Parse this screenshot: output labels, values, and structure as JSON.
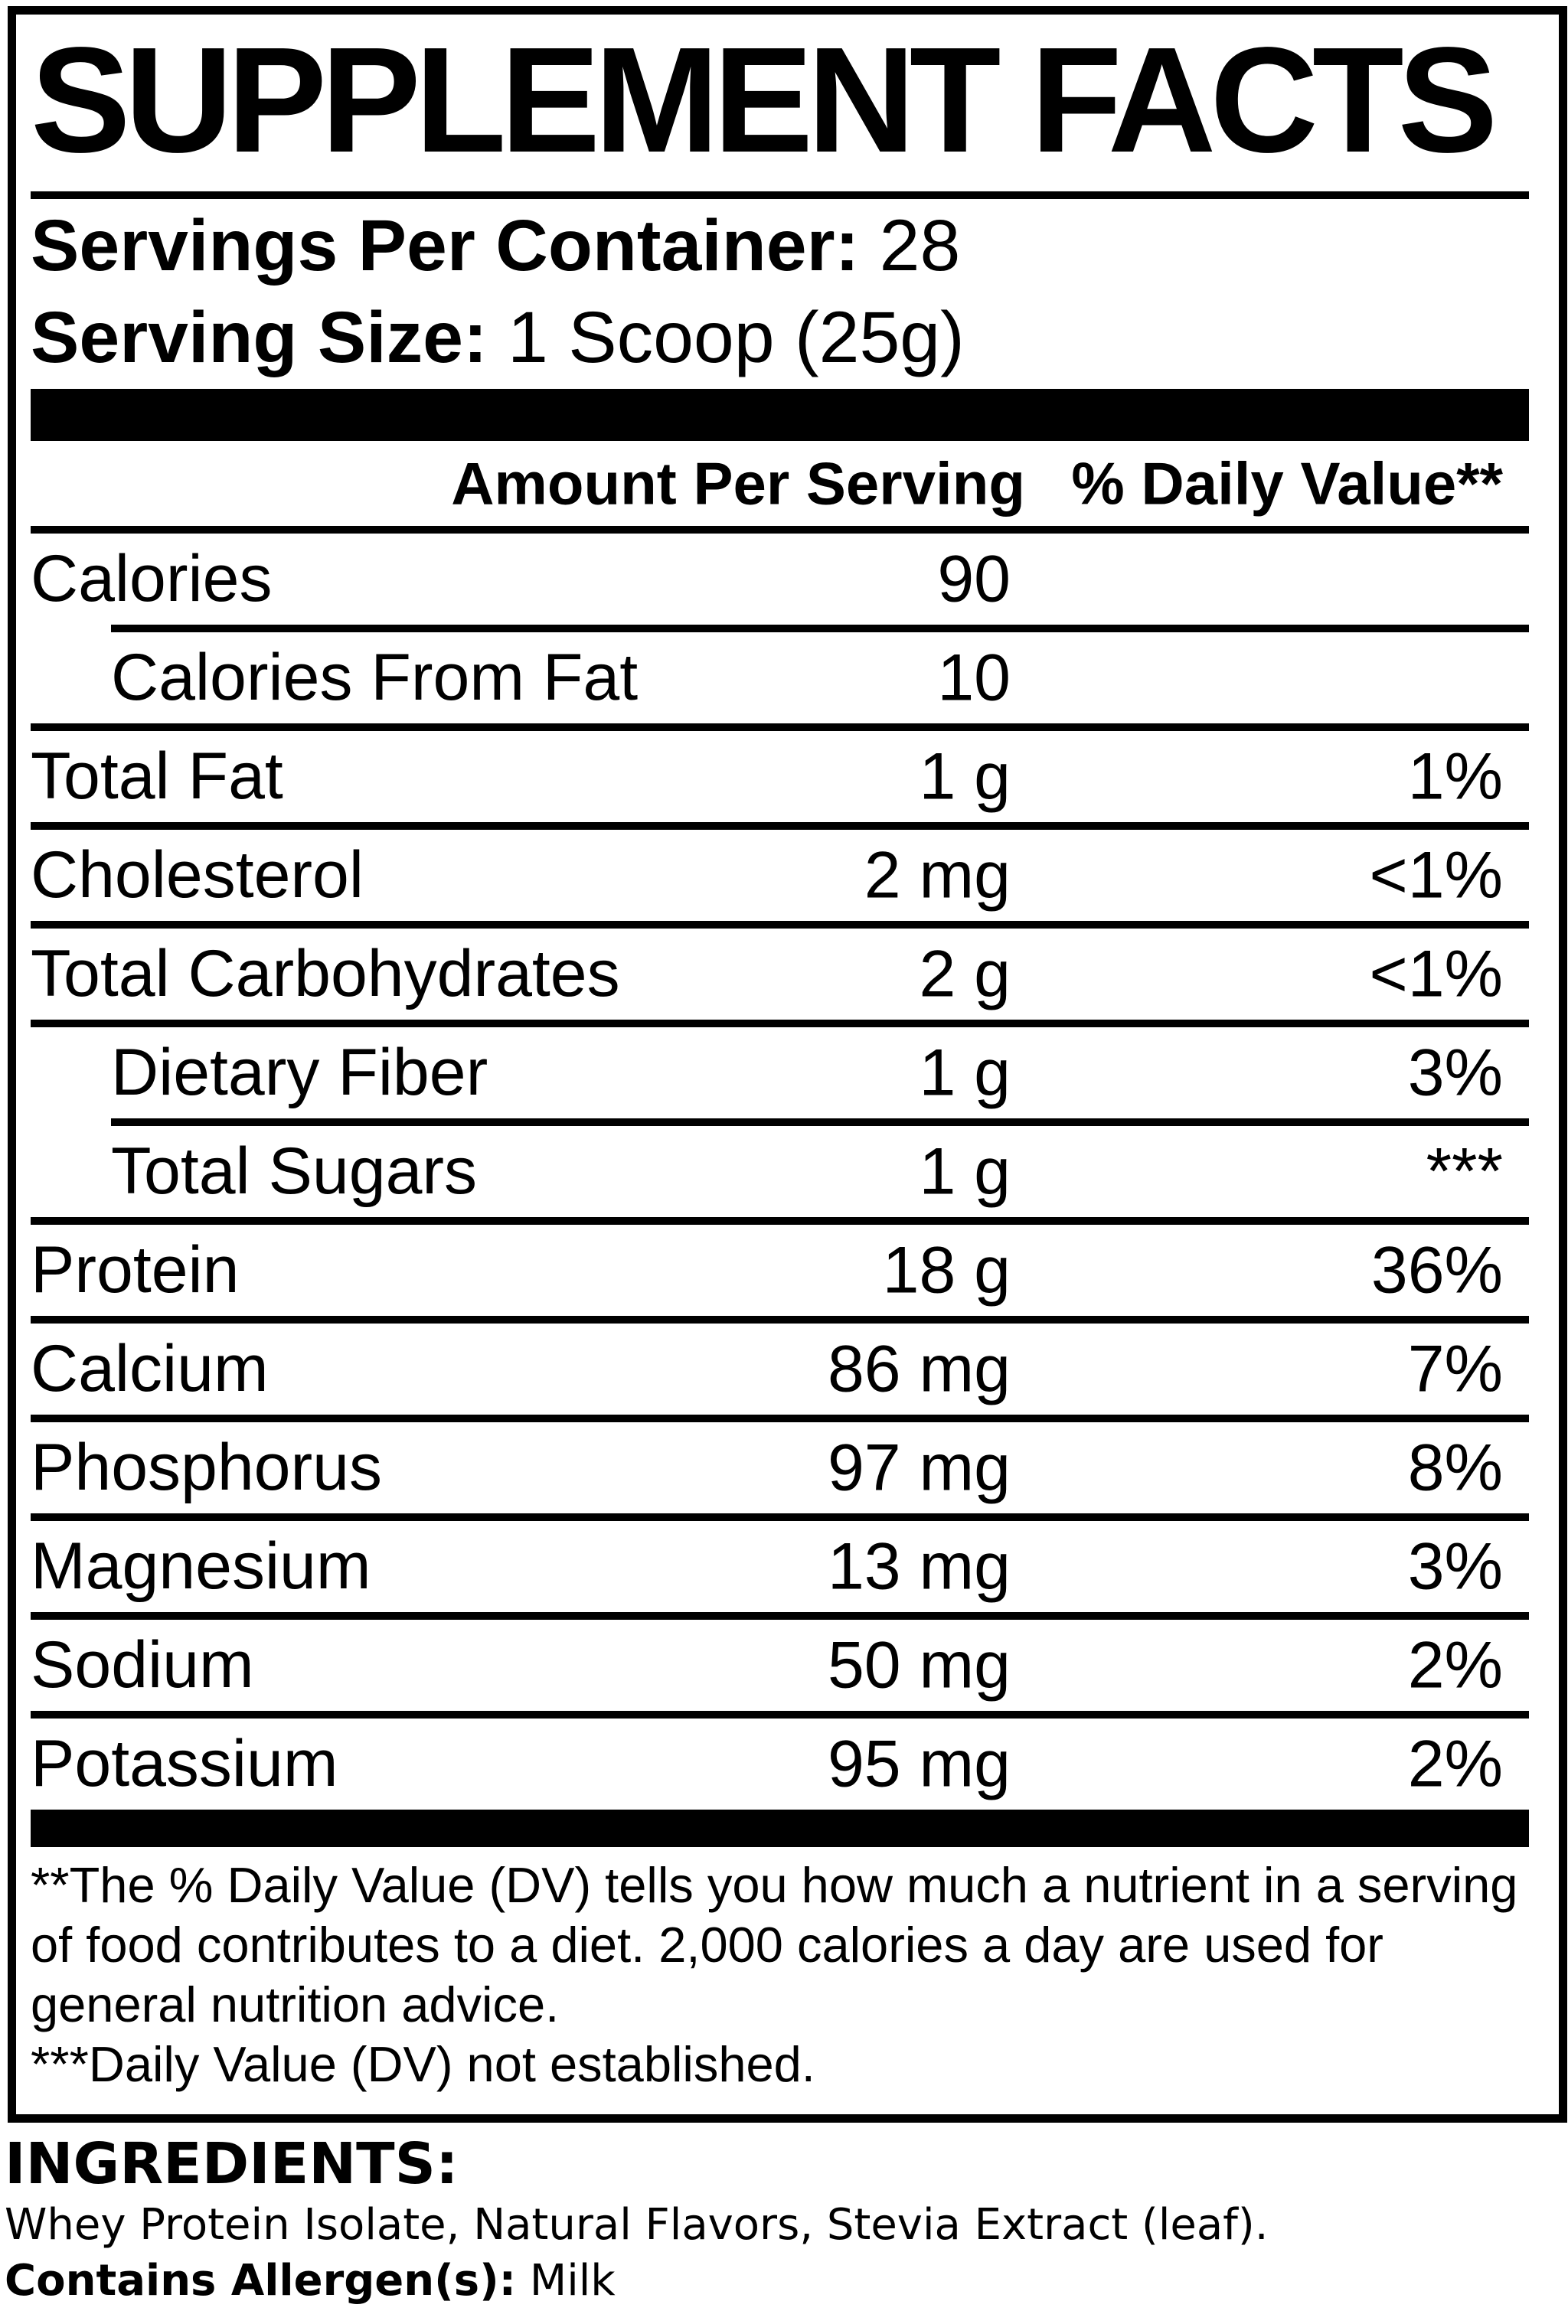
{
  "title": "SUPPLEMENT FACTS",
  "serving_info": {
    "servings_per_container_label": "Servings Per Container:",
    "servings_per_container_value": "28",
    "serving_size_label": "Serving Size:",
    "serving_size_value": "1 Scoop (25g)"
  },
  "table": {
    "columns": {
      "amount": "Amount Per Serving",
      "daily_value": "% Daily Value**"
    },
    "rows": [
      {
        "name": "Calories",
        "amount": "90",
        "dv": "",
        "indent": false,
        "separator_after": "indented"
      },
      {
        "name": "Calories From Fat",
        "amount": "10",
        "dv": "",
        "indent": true,
        "separator_after": "full"
      },
      {
        "name": "Total Fat",
        "amount": "1 g",
        "dv": "1%",
        "indent": false,
        "separator_after": "full"
      },
      {
        "name": "Cholesterol",
        "amount": "2 mg",
        "dv": "<1%",
        "indent": false,
        "separator_after": "full"
      },
      {
        "name": "Total Carbohydrates",
        "amount": "2 g",
        "dv": "<1%",
        "indent": false,
        "separator_after": "full"
      },
      {
        "name": "Dietary Fiber",
        "amount": "1 g",
        "dv": "3%",
        "indent": true,
        "separator_after": "indented"
      },
      {
        "name": "Total Sugars",
        "amount": "1 g",
        "dv": "***",
        "indent": true,
        "separator_after": "full"
      },
      {
        "name": "Protein",
        "amount": "18 g",
        "dv": "36%",
        "indent": false,
        "separator_after": "full"
      },
      {
        "name": "Calcium",
        "amount": "86 mg",
        "dv": "7%",
        "indent": false,
        "separator_after": "full"
      },
      {
        "name": "Phosphorus",
        "amount": "97 mg",
        "dv": "8%",
        "indent": false,
        "separator_after": "full"
      },
      {
        "name": "Magnesium",
        "amount": "13 mg",
        "dv": "3%",
        "indent": false,
        "separator_after": "full"
      },
      {
        "name": "Sodium",
        "amount": "50 mg",
        "dv": "2%",
        "indent": false,
        "separator_after": "full"
      },
      {
        "name": "Potassium",
        "amount": "95 mg",
        "dv": "2%",
        "indent": false,
        "separator_after": "none"
      }
    ]
  },
  "footnotes": [
    "**The % Daily Value (DV) tells you how much a nutrient in a serving of food contributes to a diet. 2,000 calories a day are used for general nutrition advice.",
    "***Daily Value (DV) not established."
  ],
  "ingredients": {
    "heading": "INGREDIENTS:",
    "list": "Whey Protein Isolate, Natural Flavors, Stevia Extract (leaf).",
    "allergen_label": "Contains Allergen(s):",
    "allergen_value": "Milk"
  },
  "colors": {
    "text": "#000000",
    "background": "#ffffff"
  }
}
